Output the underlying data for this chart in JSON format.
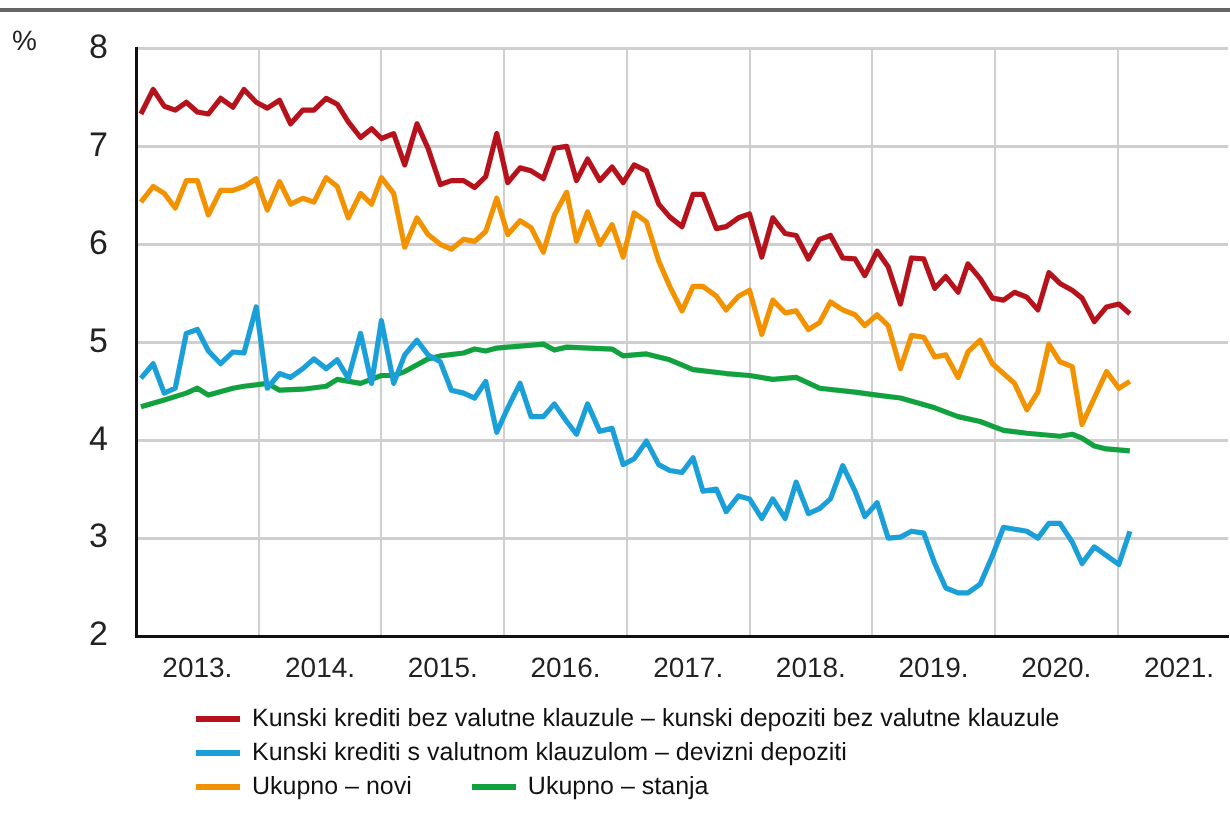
{
  "chart_data": {
    "type": "line",
    "ylabel": "%",
    "xlim": [
      2013,
      2021.9
    ],
    "ylim": [
      2,
      8
    ],
    "yticks": [
      2,
      3,
      4,
      5,
      6,
      7,
      8
    ],
    "xticks": [
      {
        "value": 2013.5,
        "label": "2013."
      },
      {
        "value": 2014,
        "label": null
      },
      {
        "value": 2014.5,
        "label": "2014."
      },
      {
        "value": 2015,
        "label": null
      },
      {
        "value": 2015.5,
        "label": "2015."
      },
      {
        "value": 2016,
        "label": null
      },
      {
        "value": 2016.5,
        "label": "2016."
      },
      {
        "value": 2017,
        "label": null
      },
      {
        "value": 2017.5,
        "label": "2017."
      },
      {
        "value": 2018,
        "label": null
      },
      {
        "value": 2018.5,
        "label": "2018."
      },
      {
        "value": 2019,
        "label": null
      },
      {
        "value": 2019.5,
        "label": "2019."
      },
      {
        "value": 2020,
        "label": null
      },
      {
        "value": 2020.5,
        "label": "2020."
      },
      {
        "value": 2021,
        "label": null
      },
      {
        "value": 2021.5,
        "label": "2021."
      }
    ],
    "grid": true,
    "legend": "bottom",
    "marker": "none",
    "line_style": "solid",
    "x": [
      2013.04,
      2013.14,
      2013.23,
      2013.32,
      2013.41,
      2013.5,
      2013.59,
      2013.69,
      2013.79,
      2013.88,
      2013.98,
      2014.07,
      2014.17,
      2014.26,
      2014.36,
      2014.45,
      2014.55,
      2014.64,
      2014.73,
      2014.83,
      2014.92,
      2015.0,
      2015.1,
      2015.19,
      2015.29,
      2015.38,
      2015.48,
      2015.57,
      2015.67,
      2015.76,
      2015.85,
      2015.94,
      2016.03,
      2016.13,
      2016.22,
      2016.32,
      2016.41,
      2016.51,
      2016.59,
      2016.68,
      2016.78,
      2016.88,
      2016.97,
      2017.06,
      2017.16,
      2017.26,
      2017.35,
      2017.45,
      2017.54,
      2017.62,
      2017.73,
      2017.81,
      2017.91,
      2018.0,
      2018.1,
      2018.19,
      2018.29,
      2018.38,
      2018.48,
      2018.57,
      2018.66,
      2018.76,
      2018.86,
      2018.94,
      2019.04,
      2019.13,
      2019.23,
      2019.32,
      2019.42,
      2019.51,
      2019.6,
      2019.7,
      2019.78,
      2019.88,
      2019.98,
      2020.07,
      2020.16,
      2020.26,
      2020.35,
      2020.44,
      2020.53,
      2020.63,
      2020.71,
      2020.81,
      2020.91,
      2021.01,
      2021.1
    ],
    "series": [
      {
        "name": "Kunski krediti bez valutne klauzule – kunski depoziti bez valutne klauzule",
        "color": "#b5121b",
        "values": [
          7.33,
          7.58,
          7.41,
          7.37,
          7.45,
          7.35,
          7.33,
          7.49,
          7.4,
          7.58,
          7.45,
          7.39,
          7.47,
          7.23,
          7.37,
          7.37,
          7.49,
          7.43,
          7.25,
          7.09,
          7.18,
          7.08,
          7.13,
          6.81,
          7.23,
          6.98,
          6.61,
          6.65,
          6.65,
          6.58,
          6.69,
          7.13,
          6.63,
          6.78,
          6.75,
          6.67,
          6.98,
          7.0,
          6.65,
          6.87,
          6.65,
          6.79,
          6.63,
          6.81,
          6.75,
          6.41,
          6.28,
          6.18,
          6.51,
          6.51,
          6.16,
          6.18,
          6.27,
          6.31,
          5.87,
          6.27,
          6.11,
          6.09,
          5.85,
          6.05,
          6.09,
          5.86,
          5.85,
          5.68,
          5.93,
          5.77,
          5.39,
          5.86,
          5.85,
          5.55,
          5.67,
          5.51,
          5.8,
          5.65,
          5.45,
          5.43,
          5.51,
          5.46,
          5.33,
          5.71,
          5.6,
          5.53,
          5.45,
          5.21,
          5.36,
          5.39,
          5.29
        ]
      },
      {
        "name": "Kunski krediti s valutnom klauzulom – devizni depoziti",
        "color": "#1a9fd9",
        "values": [
          4.63,
          4.78,
          4.48,
          4.53,
          5.09,
          5.13,
          4.91,
          4.78,
          4.9,
          4.89,
          5.36,
          4.53,
          4.68,
          4.64,
          4.73,
          4.83,
          4.73,
          4.82,
          4.63,
          5.09,
          4.58,
          5.22,
          4.58,
          4.87,
          5.02,
          4.87,
          4.8,
          4.51,
          4.48,
          4.43,
          4.6,
          4.08,
          4.33,
          4.58,
          4.24,
          4.24,
          4.37,
          4.19,
          4.06,
          4.37,
          4.09,
          4.12,
          3.75,
          3.81,
          3.99,
          3.75,
          3.69,
          3.67,
          3.82,
          3.48,
          3.5,
          3.27,
          3.43,
          3.4,
          3.2,
          3.4,
          3.2,
          3.57,
          3.25,
          3.3,
          3.4,
          3.74,
          3.48,
          3.22,
          3.36,
          3.0,
          3.01,
          3.07,
          3.05,
          2.74,
          2.49,
          2.44,
          2.44,
          2.53,
          2.82,
          3.11,
          3.09,
          3.07,
          3.0,
          3.15,
          3.15,
          2.96,
          2.74,
          2.91,
          2.82,
          2.73,
          3.07
        ]
      },
      {
        "name": "Ukupno – novi",
        "color": "#f39200",
        "values": [
          6.43,
          6.59,
          6.52,
          6.37,
          6.65,
          6.65,
          6.3,
          6.55,
          6.55,
          6.59,
          6.67,
          6.35,
          6.64,
          6.41,
          6.47,
          6.43,
          6.68,
          6.59,
          6.27,
          6.52,
          6.41,
          6.68,
          6.52,
          5.97,
          6.27,
          6.1,
          6.0,
          5.95,
          6.05,
          6.03,
          6.13,
          6.47,
          6.1,
          6.24,
          6.17,
          5.92,
          6.3,
          6.53,
          6.03,
          6.33,
          6.0,
          6.2,
          5.87,
          6.32,
          6.23,
          5.83,
          5.57,
          5.32,
          5.57,
          5.57,
          5.47,
          5.33,
          5.47,
          5.53,
          5.08,
          5.43,
          5.3,
          5.32,
          5.13,
          5.2,
          5.41,
          5.33,
          5.28,
          5.17,
          5.28,
          5.17,
          4.73,
          5.07,
          5.05,
          4.85,
          4.87,
          4.64,
          4.9,
          5.02,
          4.78,
          4.68,
          4.58,
          4.31,
          4.49,
          4.98,
          4.8,
          4.75,
          4.16,
          4.43,
          4.7,
          4.53,
          4.6
        ]
      },
      {
        "name": "Ukupno – stanja",
        "color": "#12a13f",
        "x": [
          2013.04,
          2013.23,
          2013.41,
          2013.5,
          2013.59,
          2013.79,
          2013.88,
          2014.07,
          2014.17,
          2014.36,
          2014.55,
          2014.64,
          2014.83,
          2015.0,
          2015.1,
          2015.19,
          2015.38,
          2015.48,
          2015.67,
          2015.76,
          2015.85,
          2015.94,
          2016.13,
          2016.32,
          2016.41,
          2016.51,
          2016.88,
          2016.97,
          2017.06,
          2017.16,
          2017.35,
          2017.54,
          2017.81,
          2018.0,
          2018.19,
          2018.38,
          2018.57,
          2018.86,
          2019.04,
          2019.23,
          2019.51,
          2019.7,
          2019.88,
          2020.07,
          2020.26,
          2020.53,
          2020.63,
          2020.71,
          2020.81,
          2020.91,
          2021.1
        ],
        "values": [
          4.34,
          4.41,
          4.48,
          4.53,
          4.46,
          4.53,
          4.55,
          4.58,
          4.51,
          4.52,
          4.55,
          4.62,
          4.58,
          4.66,
          4.66,
          4.7,
          4.83,
          4.86,
          4.89,
          4.93,
          4.91,
          4.94,
          4.96,
          4.98,
          4.92,
          4.95,
          4.93,
          4.86,
          4.87,
          4.88,
          4.82,
          4.72,
          4.68,
          4.66,
          4.62,
          4.64,
          4.53,
          4.49,
          4.46,
          4.43,
          4.33,
          4.24,
          4.19,
          4.1,
          4.07,
          4.04,
          4.06,
          4.02,
          3.94,
          3.91,
          3.89
        ]
      }
    ]
  }
}
